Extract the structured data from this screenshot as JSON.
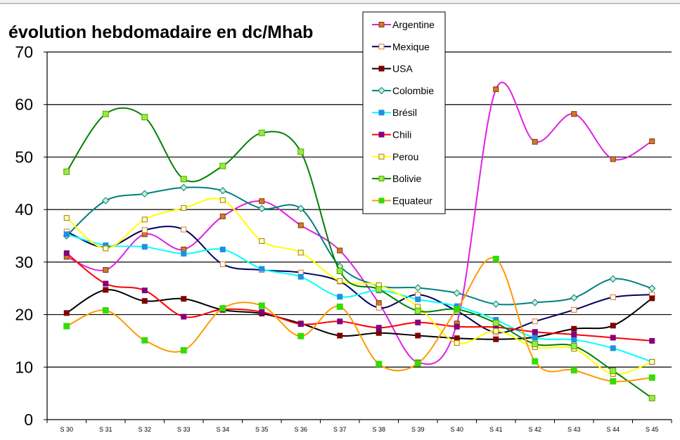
{
  "chart_data": {
    "type": "line",
    "title": "évolution hebdomadaire en dc/Mhab",
    "categories": [
      "S 30",
      "S 31",
      "S 32",
      "S 33",
      "S 34",
      "S 35",
      "S 36",
      "S 37",
      "S 38",
      "S 39",
      "S 40",
      "S 41",
      "S 42",
      "S 43",
      "S 44",
      "S 45"
    ],
    "ylim": [
      0,
      70
    ],
    "yticks": [
      0,
      10,
      20,
      30,
      40,
      50,
      60,
      70
    ],
    "grid": true,
    "smooth": true,
    "legend_position": "top-right",
    "series": [
      {
        "name": "Argentine",
        "color": "#e020e0",
        "marker": "square",
        "marker_fill": "#d4782a",
        "marker_stroke": "#7a3d00",
        "values": [
          31,
          28.5,
          35.3,
          32.4,
          38.7,
          41.6,
          37.0,
          32.2,
          22.2,
          10.9,
          18.3,
          62.9,
          52.9,
          58.2,
          49.6,
          53.0
        ]
      },
      {
        "name": "Mexique",
        "color": "#000060",
        "marker": "square",
        "marker_fill": "#ffffff",
        "marker_stroke": "#d47a2a",
        "values": [
          35.8,
          32.8,
          36.1,
          36.2,
          29.6,
          28.5,
          28.0,
          26.3,
          21.3,
          23.8,
          20.7,
          16.6,
          18.7,
          20.9,
          23.3,
          23.8
        ]
      },
      {
        "name": "USA",
        "color": "#000000",
        "marker": "square",
        "marker_fill": "#800000",
        "marker_stroke": "#800000",
        "values": [
          20.3,
          24.7,
          22.6,
          23.0,
          20.9,
          20.2,
          18.3,
          16.0,
          16.5,
          16.0,
          15.5,
          15.3,
          15.7,
          17.3,
          17.9,
          23.1
        ]
      },
      {
        "name": "Colombie",
        "color": "#008080",
        "marker": "diamond",
        "marker_fill": "#c8f0c8",
        "marker_stroke": "#008080",
        "values": [
          35.0,
          41.7,
          43.0,
          44.2,
          43.6,
          40.2,
          40.2,
          29.2,
          25.5,
          25.1,
          24.1,
          22.0,
          22.3,
          23.2,
          26.8,
          25.0
        ]
      },
      {
        "name": "Brésil",
        "color": "#00ffff",
        "marker": "square",
        "marker_fill": "#2090e0",
        "marker_stroke": "#2090e0",
        "values": [
          35.3,
          33.2,
          32.9,
          31.6,
          32.4,
          28.7,
          27.2,
          23.4,
          24.6,
          22.9,
          21.6,
          19.0,
          15.6,
          15.2,
          13.6,
          11.0
        ]
      },
      {
        "name": "Chili",
        "color": "#ff0000",
        "marker": "square",
        "marker_fill": "#800080",
        "marker_stroke": "#800080",
        "values": [
          31.7,
          25.9,
          24.6,
          19.6,
          21.0,
          20.5,
          18.2,
          18.7,
          17.5,
          18.5,
          17.7,
          17.6,
          16.7,
          16.2,
          15.6,
          15.0
        ]
      },
      {
        "name": "Perou",
        "color": "#ffff00",
        "marker": "square",
        "marker_fill": "#ffffc0",
        "marker_stroke": "#a08000",
        "values": [
          38.4,
          32.6,
          38.1,
          40.3,
          41.8,
          34.0,
          31.8,
          26.4,
          25.6,
          21.5,
          14.6,
          16.9,
          13.8,
          13.5,
          8.7,
          11.0
        ]
      },
      {
        "name": "Bolivie",
        "color": "#008000",
        "marker": "square",
        "marker_fill": "#90ee40",
        "marker_stroke": "#60a000",
        "values": [
          47.2,
          58.2,
          57.6,
          45.8,
          48.3,
          54.6,
          51.0,
          28.3,
          24.8,
          20.7,
          21.0,
          18.4,
          14.4,
          14.0,
          9.3,
          4.1
        ]
      },
      {
        "name": "Equateur",
        "color": "#ff9900",
        "marker": "square",
        "marker_fill": "#33dd00",
        "marker_stroke": "#33dd00",
        "values": [
          17.8,
          20.8,
          15.1,
          13.2,
          21.2,
          21.7,
          15.9,
          21.5,
          10.6,
          10.7,
          21.0,
          30.6,
          11.1,
          9.4,
          7.3,
          8.0
        ]
      }
    ]
  }
}
